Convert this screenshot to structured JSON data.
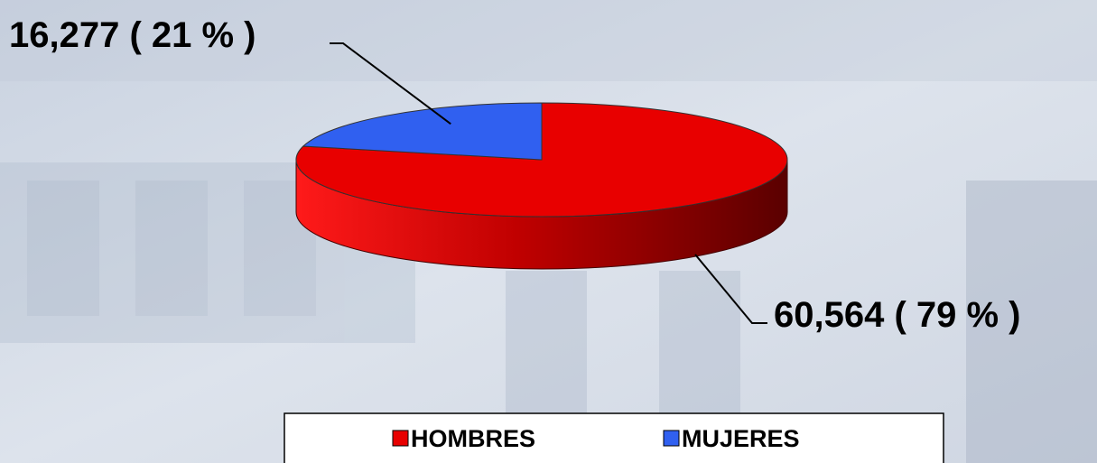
{
  "chart_data": {
    "type": "pie",
    "categories": [
      "HOMBRES",
      "MUJERES"
    ],
    "values": [
      60564,
      16277
    ],
    "value_labels": [
      "60,564 ( 79 % )",
      "16,277 ( 21 % )"
    ],
    "colors": [
      "#e80000",
      "#3060f0"
    ]
  }
}
